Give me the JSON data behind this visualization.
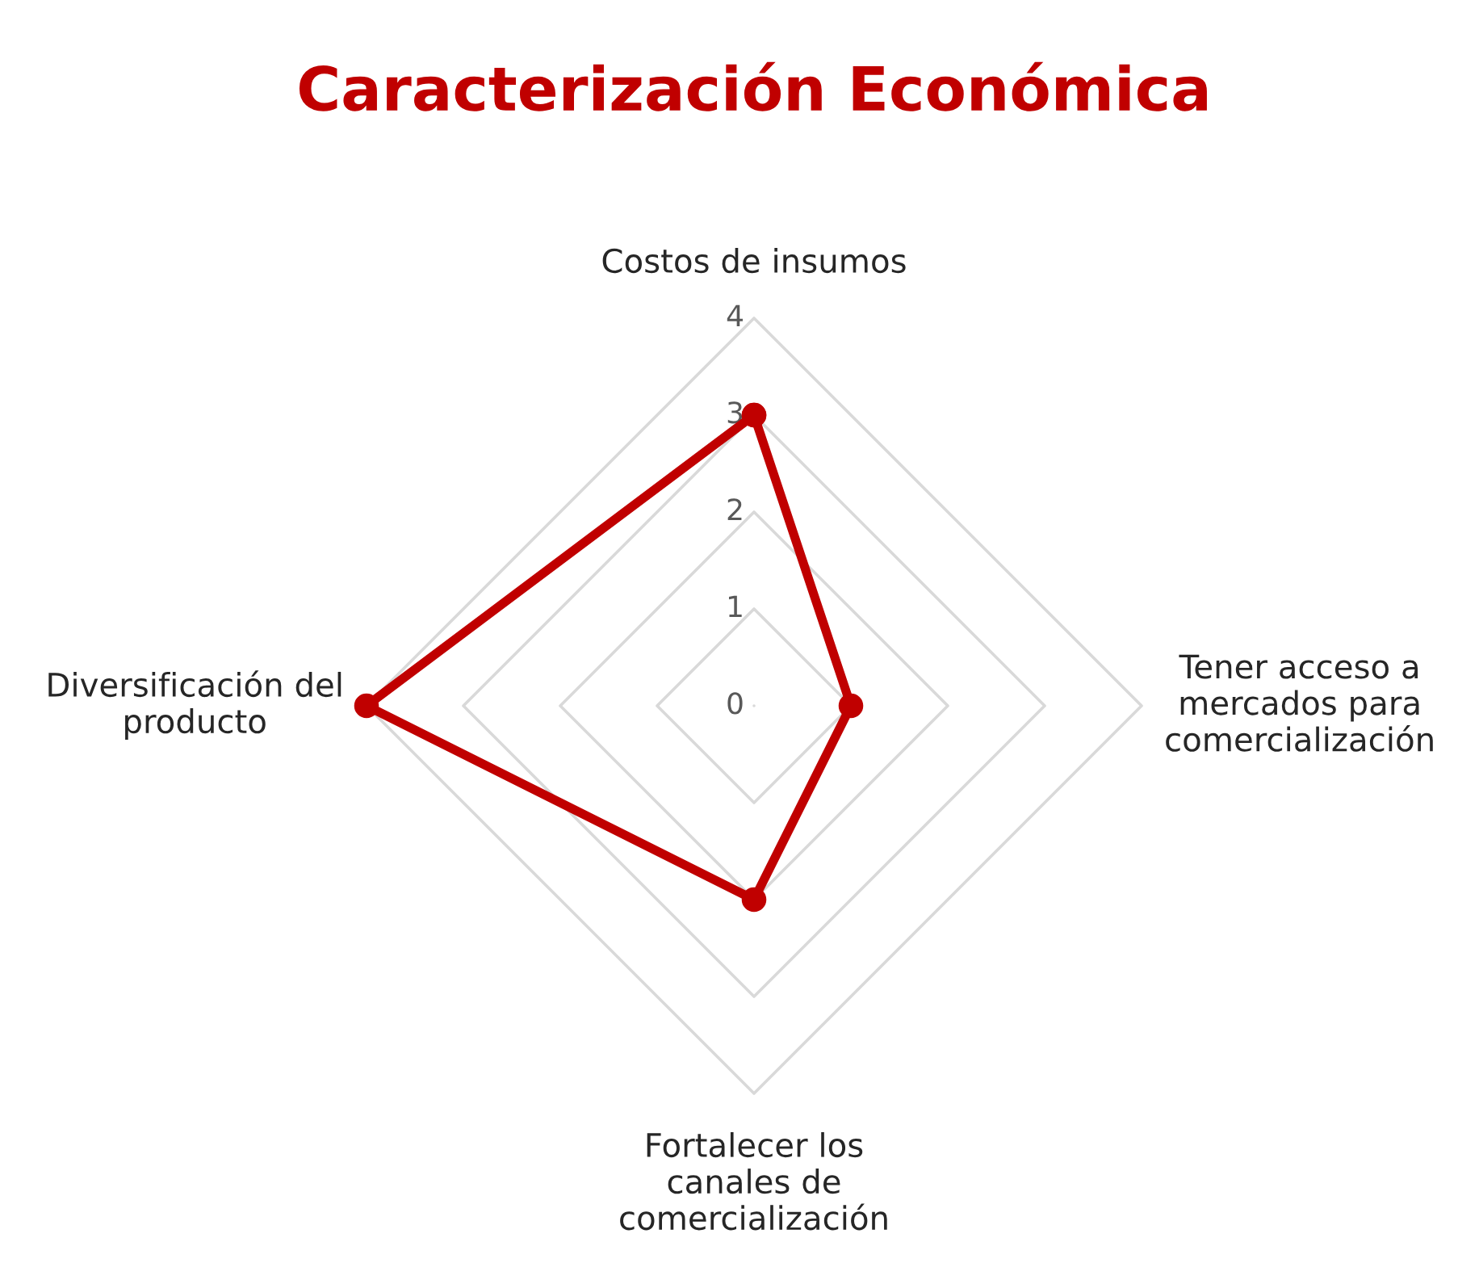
{
  "chart_data": {
    "type": "radar",
    "title": "Caracterización Económica",
    "categories": [
      "Costos de insumos",
      "Tener acceso a\nmercados para\ncomercialización",
      "Fortalecer los\ncanales de\ncomercialización",
      "Diversificación del\nproducto"
    ],
    "series": [
      {
        "color": "#c00000",
        "values": [
          3,
          1,
          2,
          4
        ]
      }
    ],
    "ylim": [
      0,
      4
    ],
    "yticks": [
      0,
      1,
      2,
      3,
      4
    ],
    "marker": "circle",
    "line_style": "solid",
    "grid": true,
    "legend": false
  }
}
